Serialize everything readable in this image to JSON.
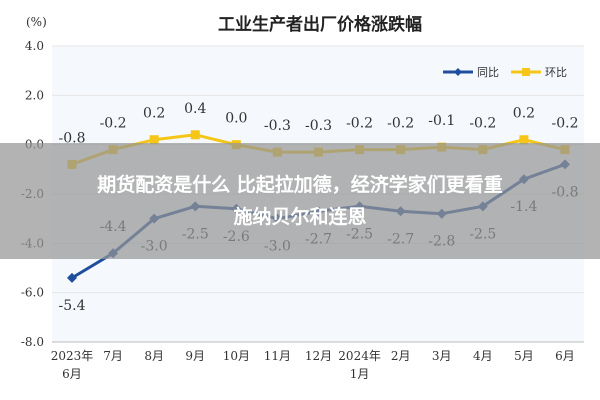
{
  "chart_data": {
    "type": "line",
    "title": "工业生产者出厂价格涨跌幅",
    "ylabel": "(%)",
    "ylim": [
      -8.0,
      4.0
    ],
    "yticks": [
      "4.0",
      "2.0",
      "0.0",
      "-2.0",
      "-4.0",
      "-6.0",
      "-8.0"
    ],
    "ytick_values": [
      4,
      2,
      0,
      -2,
      -4,
      -6,
      -8
    ],
    "categories": [
      [
        "2023年",
        "6月"
      ],
      [
        "7月"
      ],
      [
        "8月"
      ],
      [
        "9月"
      ],
      [
        "10月"
      ],
      [
        "11月"
      ],
      [
        "12月"
      ],
      [
        "2024年",
        "1月"
      ],
      [
        "2月"
      ],
      [
        "3月"
      ],
      [
        "4月"
      ],
      [
        "5月"
      ],
      [
        "6月"
      ]
    ],
    "grid": true,
    "legend_position": "top-right",
    "series": [
      {
        "name": "同比",
        "color": "#1f4e9c",
        "values": [
          -5.4,
          -4.4,
          -3.0,
          -2.5,
          -2.6,
          -3.0,
          -2.7,
          -2.5,
          -2.7,
          -2.8,
          -2.5,
          -1.4,
          -0.8
        ],
        "labels": [
          "-5.4",
          "-4.4",
          "-3.0",
          "-2.5",
          "-2.6",
          "-3.0",
          "-2.7",
          "-2.5",
          "-2.7",
          "-2.8",
          "-2.5",
          "-1.4",
          "-0.8"
        ]
      },
      {
        "name": "环比",
        "color": "#f5c518",
        "values": [
          -0.8,
          -0.2,
          0.2,
          0.4,
          0.0,
          -0.3,
          -0.3,
          -0.2,
          -0.2,
          -0.1,
          -0.2,
          0.2,
          -0.2
        ],
        "labels": [
          "-0.8",
          "-0.2",
          "0.2",
          "0.4",
          "0.0",
          "-0.3",
          "-0.3",
          "-0.2",
          "-0.2",
          "-0.1",
          "-0.2",
          "0.2",
          "-0.2"
        ]
      }
    ]
  },
  "overlay": {
    "line1": "期货配资是什么 比起拉加德，经济学家们更看重",
    "line2": "施纳贝尔和连恩"
  }
}
